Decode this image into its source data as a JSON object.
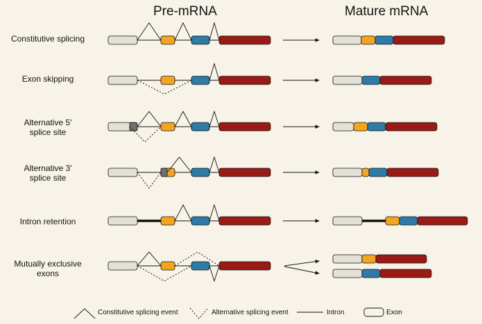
{
  "headers": {
    "pre": "Pre-mRNA",
    "mature": "Mature mRNA"
  },
  "rows": [
    {
      "label_lines": [
        "Constitutive splicing"
      ]
    },
    {
      "label_lines": [
        "Exon skipping"
      ]
    },
    {
      "label_lines": [
        "Alternative 5'",
        "splice site"
      ]
    },
    {
      "label_lines": [
        "Alternative 3'",
        "splice site"
      ]
    },
    {
      "label_lines": [
        "Intron retention"
      ]
    },
    {
      "label_lines": [
        "Mutually exclusive",
        "exons"
      ]
    }
  ],
  "legend": {
    "constitutive": "Constitutive splicing event",
    "alternative": "Alternative splicing event",
    "intron": "Intron",
    "exon": "Exon"
  },
  "colors": {
    "background": "#f7f3e8",
    "exon_grey": "#e3e0d8",
    "exon_orange": "#f3a51f",
    "exon_blue": "#2f7aa6",
    "exon_red": "#9a1b16",
    "splice_grey": "#6f6f6f"
  }
}
